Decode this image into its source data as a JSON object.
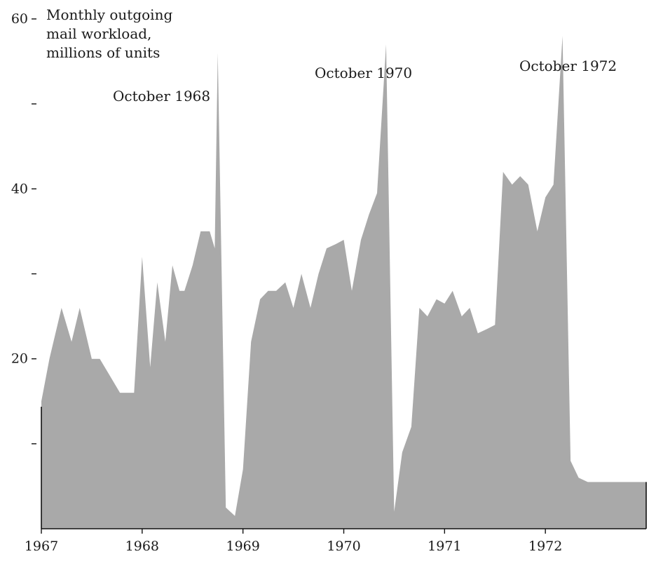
{
  "chart_data": {
    "type": "area",
    "title_lines": [
      "Monthly outgoing",
      "mail workload,",
      "millions of units"
    ],
    "ylim": [
      0,
      60
    ],
    "yticks": [
      {
        "value": 60,
        "label": "60"
      },
      {
        "value": 50,
        "label": ""
      },
      {
        "value": 40,
        "label": "40"
      },
      {
        "value": 30,
        "label": ""
      },
      {
        "value": 20,
        "label": "20"
      },
      {
        "value": 10,
        "label": ""
      }
    ],
    "xticks": [
      {
        "value": 1967,
        "label": "1967"
      },
      {
        "value": 1968,
        "label": "1968"
      },
      {
        "value": 1969,
        "label": "1969"
      },
      {
        "value": 1970,
        "label": "1970"
      },
      {
        "value": 1971,
        "label": "1971"
      },
      {
        "value": 1972,
        "label": "1972"
      }
    ],
    "xlim": [
      1967,
      1973
    ],
    "fill_color": "#a9a9a9",
    "grid": false,
    "annotations": [
      {
        "text": "October 1968",
        "x": 1968.75,
        "y": 55.5
      },
      {
        "text": "October 1970",
        "x": 1970.75,
        "y": 56.5
      },
      {
        "text": "October 1972",
        "x": 1972.75,
        "y": 56.5
      }
    ],
    "series": [
      {
        "x": [
          1967.0,
          1967.08,
          1967.2,
          1967.3,
          1967.38,
          1967.5,
          1967.58,
          1967.68,
          1967.78,
          1967.88,
          1967.92,
          1968.0,
          1968.08,
          1968.15,
          1968.23,
          1968.3,
          1968.37,
          1968.42,
          1968.5,
          1968.58,
          1968.67,
          1968.72,
          1968.75,
          1968.83,
          1968.92,
          1969.0,
          1969.08,
          1969.17,
          1969.25,
          1969.33,
          1969.42,
          1969.5,
          1969.58,
          1969.67,
          1969.75,
          1969.83,
          1969.92,
          1970.0,
          1970.08,
          1970.17,
          1970.25,
          1970.33,
          1970.42,
          1970.5,
          1970.58,
          1970.67,
          1970.75,
          1970.83,
          1970.92,
          1971.0,
          1971.08,
          1971.17,
          1971.25,
          1971.33,
          1971.42,
          1971.5,
          1971.58,
          1971.67,
          1971.75,
          1971.83,
          1971.92,
          1972.0,
          1972.08,
          1972.17,
          1972.25,
          1972.33,
          1972.42,
          1972.5,
          1972.58,
          1972.67,
          1972.75,
          1972.83,
          1972.92,
          1973.0
        ],
        "y": [
          15,
          20,
          26,
          22,
          26,
          20,
          20,
          18,
          16,
          16,
          16,
          32,
          19,
          29,
          22,
          31,
          28,
          28,
          31,
          35,
          35,
          33,
          56,
          2.5,
          1.5,
          7,
          22,
          27,
          28,
          28,
          29,
          26,
          30,
          26,
          30,
          33,
          33.5,
          34,
          28,
          34,
          37,
          39.5,
          57,
          2,
          9,
          12,
          26,
          25,
          27,
          26.5,
          28,
          25,
          26,
          23,
          23.5,
          24,
          42,
          40.5,
          41.5,
          40.5,
          35,
          39,
          40.5,
          58,
          8,
          6,
          5.5,
          5.5,
          5.5,
          5.5,
          5.5,
          5.5,
          5.5,
          5.5
        ]
      }
    ]
  }
}
